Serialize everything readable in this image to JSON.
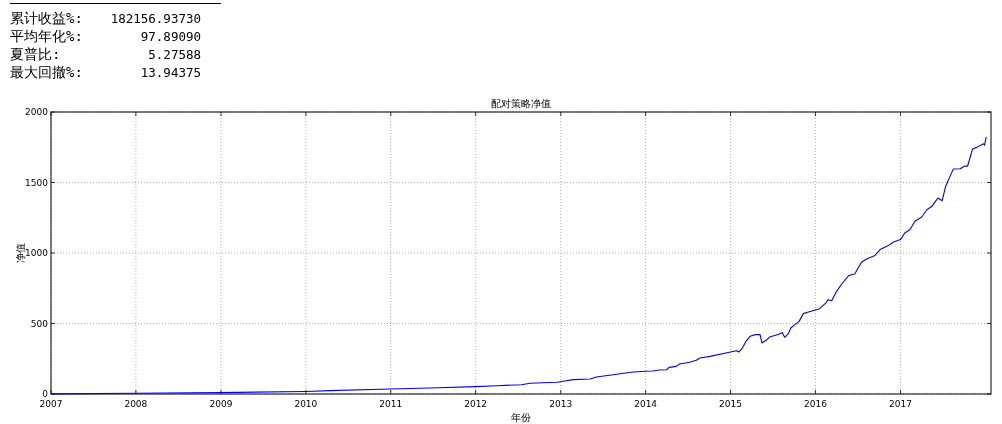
{
  "chart_data": {
    "type": "line",
    "title": "配对策略净值",
    "xlabel": "年份",
    "ylabel": "净值",
    "annotations": [
      "累计收益%:",
      "182156.93730",
      "平均年化%:",
      "97.89090",
      "夏普比:",
      "5.27588",
      "最大回撤%:",
      "13.94375"
    ],
    "x": [
      "2007-01-04",
      "2008-01-01",
      "2009-01-01",
      "2010-01-01",
      "2010-04-15",
      "2011-01-01",
      "2011-06-18",
      "2012-01-01",
      "2012-04-01",
      "2012-07-16",
      "2012-08-22",
      "2012-12-16",
      "2013-01-12",
      "2013-02-24",
      "2013-05-08",
      "2013-06-03",
      "2013-08-15",
      "2013-09-28",
      "2013-11-10",
      "2014-01-01",
      "2014-02-01",
      "2014-03-01",
      "2014-04-01",
      "2014-04-12",
      "2014-05-12",
      "2014-05-27",
      "2014-07-09",
      "2014-08-07",
      "2014-08-22",
      "2014-10-05",
      "2015-01-01",
      "2015-01-27",
      "2015-02-06",
      "2015-02-21",
      "2015-03-08",
      "2015-03-26",
      "2015-04-17",
      "2015-05-08",
      "2015-05-16",
      "2015-06-03",
      "2015-06-18",
      "2015-07-31",
      "2015-08-11",
      "2015-08-22",
      "2015-09-06",
      "2015-09-17",
      "2015-10-05",
      "2015-10-23",
      "2015-11-10",
      "2015-12-02",
      "2016-01-19",
      "2016-02-14",
      "2016-02-25",
      "2016-03-11",
      "2016-04-01",
      "2016-04-23",
      "2016-05-23",
      "2016-06-03",
      "2016-06-18",
      "2016-07-17",
      "2016-08-08",
      "2016-09-13",
      "2016-10-05",
      "2016-11-03",
      "2016-12-02",
      "2017-01-01",
      "2017-01-19",
      "2017-02-10",
      "2017-03-04",
      "2017-04-02",
      "2017-04-24",
      "2017-05-16",
      "2017-05-31",
      "2017-06-11",
      "2017-06-29",
      "2017-07-14",
      "2017-08-05",
      "2017-08-16",
      "2017-09-14",
      "2017-10-05",
      "2017-10-16",
      "2017-11-07",
      "2017-11-25",
      "2017-12-24",
      "2017-12-28",
      "2018-01-04"
    ],
    "series": [
      {
        "color": "#0000ff",
        "values": [
          1,
          5,
          10,
          18,
          24,
          35,
          43,
          52,
          59,
          66,
          76,
          83,
          90,
          102,
          106,
          121,
          137,
          147,
          156,
          161,
          163,
          170,
          172,
          189,
          196,
          213,
          225,
          239,
          255,
          267,
          298,
          307,
          298,
          326,
          373,
          409,
          421,
          421,
          362,
          381,
          404,
          426,
          437,
          402,
          426,
          468,
          492,
          515,
          570,
          582,
          605,
          645,
          669,
          662,
          728,
          780,
          839,
          846,
          851,
          934,
          957,
          983,
          1024,
          1047,
          1078,
          1095,
          1142,
          1165,
          1225,
          1255,
          1307,
          1331,
          1366,
          1390,
          1371,
          1473,
          1556,
          1596,
          1598,
          1617,
          1615,
          1738,
          1749,
          1775,
          1764,
          1820
        ]
      }
    ],
    "xlim": [
      "2007-01-01",
      "2018-01-25"
    ],
    "xticks": [
      "2007",
      "2008",
      "2009",
      "2010",
      "2011",
      "2012",
      "2013",
      "2014",
      "2015",
      "2016",
      "2017"
    ],
    "ylim": [
      0,
      2000
    ],
    "yticks": [
      0,
      500,
      1000,
      1500,
      2000
    ],
    "grid": true,
    "line_style": "solid"
  }
}
